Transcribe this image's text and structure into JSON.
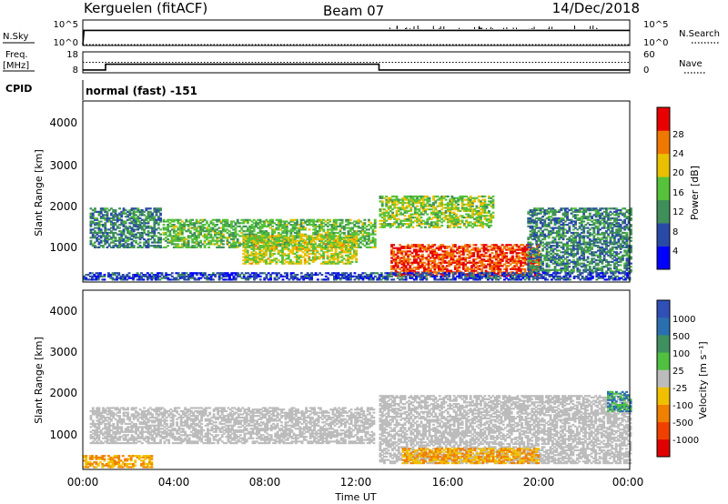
{
  "header": {
    "station": "Kerguelen (fitACF)",
    "beam": "Beam 07",
    "date": "14/Dec/2018"
  },
  "top_strip": {
    "left_label": "N.Sky",
    "right_label": "N.Search",
    "left_ticks": [
      "10^5",
      "10^0"
    ],
    "right_ticks": [
      "10^5",
      "10^0"
    ]
  },
  "freq_strip": {
    "left_label_1": "Freq.",
    "left_label_2": "[MHz]",
    "right_label": "Nave",
    "left_ticks": [
      "18",
      "8"
    ],
    "right_ticks": [
      "60",
      "0"
    ]
  },
  "cpid": {
    "label": "CPID",
    "value": "normal (fast) -151"
  },
  "panels": {
    "power": {
      "ylabel": "Slant Range [km]",
      "yticks": [
        "4000",
        "3000",
        "2000",
        "1000"
      ],
      "colorbar_label": "Power [dB]",
      "colorbar_ticks": [
        "28",
        "24",
        "20",
        "16",
        "12",
        "8",
        "4"
      ]
    },
    "velocity": {
      "ylabel": "Slant Range [km]",
      "yticks": [
        "4000",
        "3000",
        "2000",
        "1000"
      ],
      "colorbar_label": "Velocity [m s⁻¹]",
      "colorbar_ticks": [
        "1000",
        "500",
        "100",
        "25",
        "-25",
        "-100",
        "-500",
        "-1000"
      ]
    }
  },
  "xaxis": {
    "label": "Time UT",
    "ticks": [
      "00:00",
      "04:00",
      "08:00",
      "12:00",
      "16:00",
      "20:00",
      "00:00"
    ]
  },
  "colors": {
    "power_scale": [
      "#0000ff",
      "#2a4aa8",
      "#3f8f5a",
      "#55c23a",
      "#e8c000",
      "#f07800",
      "#e80000"
    ],
    "velocity_scale": [
      "#3050b8",
      "#2a70b0",
      "#3f9060",
      "#4fc040",
      "#bcbcbc",
      "#f0c000",
      "#f08000",
      "#f04000",
      "#e00000"
    ],
    "frame": "#000000"
  },
  "chart_data": [
    {
      "type": "line",
      "title": "N.Sky / N.Search",
      "x_range_hours": [
        0,
        24
      ],
      "series": [
        {
          "name": "N.Sky",
          "x": [
            0,
            0.05,
            24
          ],
          "y": [
            1,
            1000,
            1000
          ]
        },
        {
          "name": "N.Search",
          "x": [
            0,
            24
          ],
          "y": [
            1,
            1
          ]
        }
      ]
    },
    {
      "type": "line",
      "title": "Freq. [MHz] / Nave",
      "x_range_hours": [
        0,
        24
      ],
      "series": [
        {
          "name": "Freq.",
          "x": [
            0,
            1,
            1,
            13,
            13,
            24
          ],
          "y": [
            9,
            9,
            12,
            12,
            9,
            9
          ]
        },
        {
          "name": "Nave",
          "x": [
            0,
            24
          ],
          "y": [
            30,
            30
          ]
        }
      ]
    },
    {
      "type": "heatmap",
      "title": "Power [dB]",
      "x_range_hours": [
        0,
        24
      ],
      "ylim": [
        180,
        4620
      ],
      "scatter_regions": [
        {
          "t0": 0.3,
          "t1": 3.4,
          "r0": 1000,
          "r1": 2000,
          "value": 10
        },
        {
          "t0": 3.5,
          "t1": 12.8,
          "r0": 1000,
          "r1": 1700,
          "value": 14
        },
        {
          "t0": 7.0,
          "t1": 12.0,
          "r0": 600,
          "r1": 1300,
          "value": 18
        },
        {
          "t0": 13.0,
          "t1": 18.0,
          "r0": 1500,
          "r1": 2300,
          "value": 16
        },
        {
          "t0": 13.5,
          "t1": 20.0,
          "r0": 300,
          "r1": 1100,
          "value": 26
        },
        {
          "t0": 19.5,
          "t1": 24.0,
          "r0": 400,
          "r1": 2000,
          "value": 10
        },
        {
          "t0": 0.0,
          "t1": 24.0,
          "r0": 200,
          "r1": 400,
          "value": 6
        }
      ]
    },
    {
      "type": "heatmap",
      "title": "Velocity [m s-1]",
      "x_range_hours": [
        0,
        24
      ],
      "ylim": [
        180,
        4620
      ],
      "scatter_regions": [
        {
          "t0": 0.3,
          "t1": 12.8,
          "r0": 800,
          "r1": 1700,
          "value": 0
        },
        {
          "t0": 13.0,
          "t1": 24.0,
          "r0": 300,
          "r1": 2000,
          "value": 0
        },
        {
          "t0": 14.0,
          "t1": 20.0,
          "r0": 300,
          "r1": 700,
          "value": -100
        },
        {
          "t0": 23.0,
          "t1": 24.0,
          "r0": 1600,
          "r1": 2100,
          "value": 100
        },
        {
          "t0": 0.0,
          "t1": 3.0,
          "r0": 200,
          "r1": 500,
          "value": -100
        }
      ]
    }
  ]
}
